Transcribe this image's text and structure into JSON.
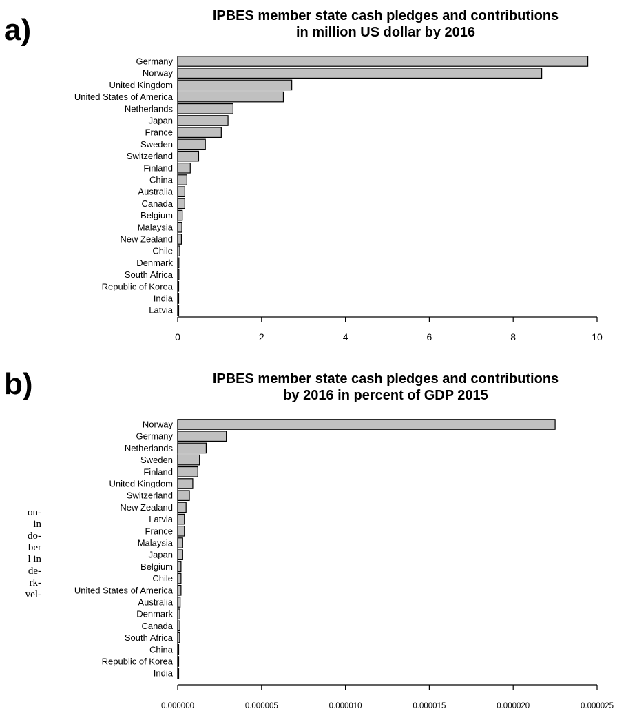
{
  "panels": [
    {
      "label": "a)"
    },
    {
      "label": "b)"
    }
  ],
  "side_text": [
    "on-",
    "in",
    "do-",
    "ber",
    "l in",
    "de-",
    "rk-",
    "vel-"
  ],
  "chart_data": [
    {
      "type": "bar",
      "orientation": "horizontal",
      "title_line1": "IPBES member state cash pledges and contributions",
      "title_line2": "in million US dollar by 2016",
      "categories": [
        "Germany",
        "Norway",
        "United Kingdom",
        "United States of America",
        "Netherlands",
        "Japan",
        "France",
        "Sweden",
        "Switzerland",
        "Finland",
        "China",
        "Australia",
        "Canada",
        "Belgium",
        "Malaysia",
        "New Zealand",
        "Chile",
        "Denmark",
        "South Africa",
        "Republic of Korea",
        "India",
        "Latvia"
      ],
      "values": [
        9.78,
        8.68,
        2.72,
        2.52,
        1.32,
        1.2,
        1.04,
        0.66,
        0.5,
        0.3,
        0.22,
        0.17,
        0.17,
        0.11,
        0.1,
        0.09,
        0.05,
        0.03,
        0.03,
        0.02,
        0.02,
        0.01
      ],
      "xlim": [
        0,
        10
      ],
      "xticks": [
        0,
        2,
        4,
        6,
        8,
        10
      ],
      "xtick_labels": [
        "0",
        "2",
        "4",
        "6",
        "8",
        "10"
      ],
      "bar_color": "#c0c0c0",
      "grid": false
    },
    {
      "type": "bar",
      "orientation": "horizontal",
      "title_line1": "IPBES member state cash pledges and contributions",
      "title_line2": "by 2016 in percent of GDP 2015",
      "categories": [
        "Norway",
        "Germany",
        "Netherlands",
        "Sweden",
        "Finland",
        "United Kingdom",
        "Switzerland",
        "New Zealand",
        "Latvia",
        "France",
        "Malaysia",
        "Japan",
        "Belgium",
        "Chile",
        "United States of America",
        "Australia",
        "Denmark",
        "Canada",
        "South Africa",
        "China",
        "Republic of Korea",
        "India"
      ],
      "values": [
        2.25e-05,
        2.9e-06,
        1.7e-06,
        1.3e-06,
        1.2e-06,
        9e-07,
        7e-07,
        5e-07,
        4e-07,
        4e-07,
        3e-07,
        3e-07,
        2e-07,
        2e-07,
        2e-07,
        1.5e-07,
        1.3e-07,
        1.3e-07,
        1.2e-07,
        5e-08,
        4e-08,
        2e-08
      ],
      "xlim": [
        0,
        2.5e-05
      ],
      "xticks": [
        0,
        5e-06,
        1e-05,
        1.5e-05,
        2e-05,
        2.5e-05
      ],
      "xtick_labels": [
        "0.000000",
        "0.000005",
        "0.000010",
        "0.000015",
        "0.000020",
        "0.000025"
      ],
      "bar_color": "#c0c0c0",
      "grid": false
    }
  ]
}
